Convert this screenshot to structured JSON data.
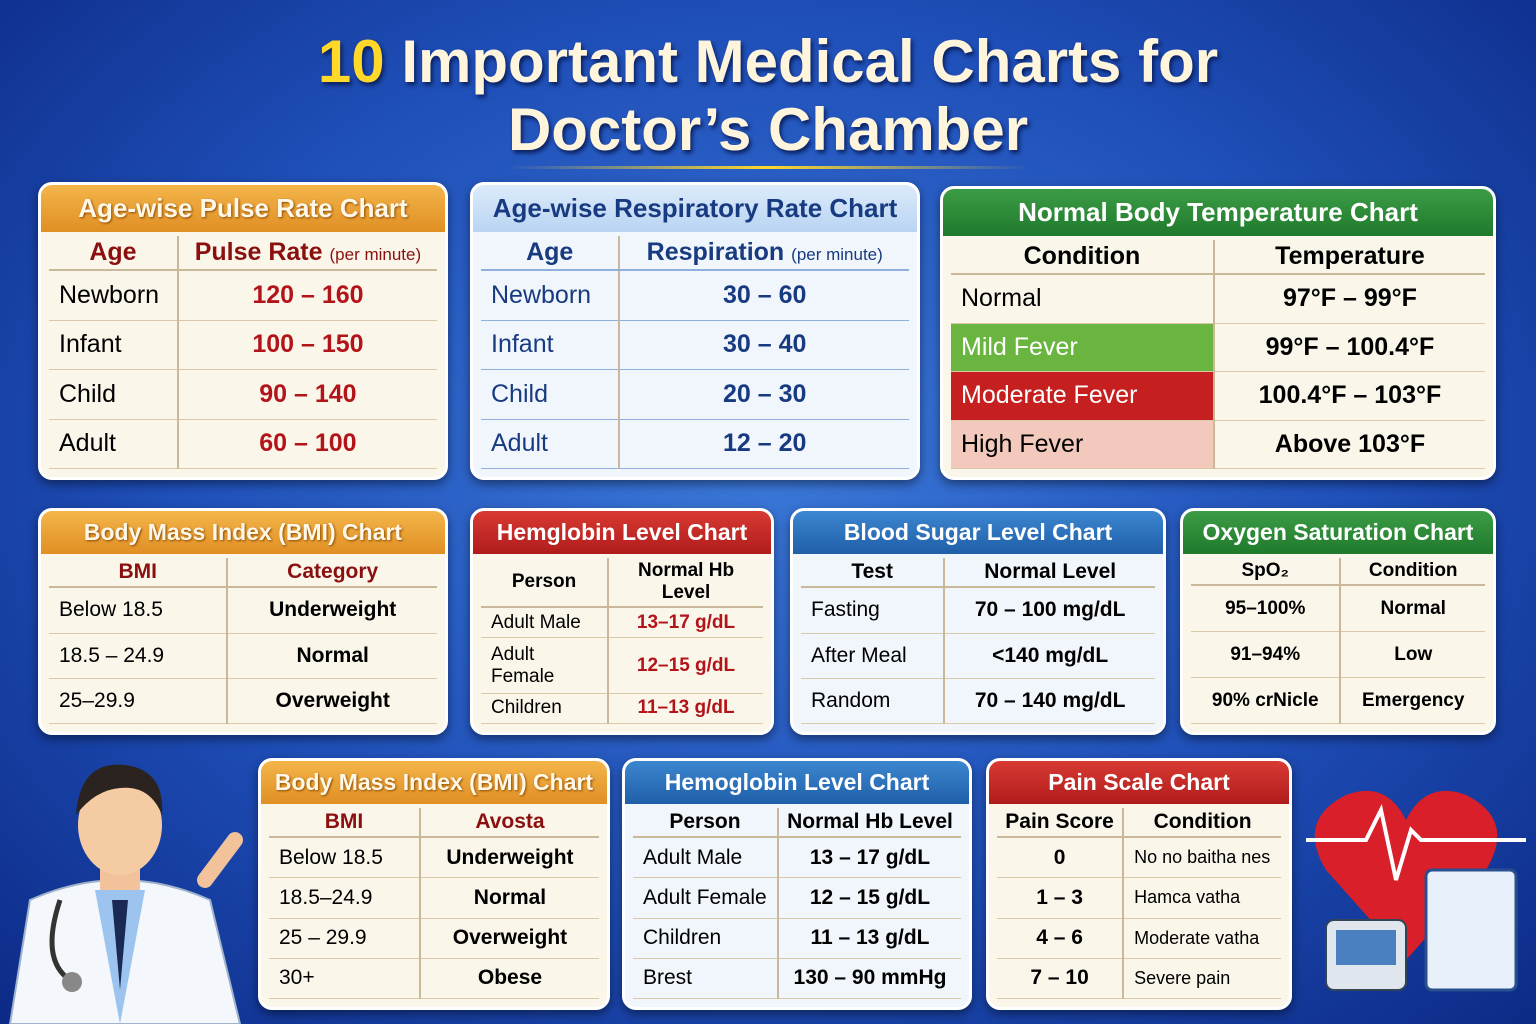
{
  "header": {
    "number": "10",
    "line1": "Important Medical Charts for",
    "line2": "Doctor’s Chamber"
  },
  "cards": [
    {
      "title": "Age-wise Pulse Rate Chart",
      "columns": [
        "Age",
        {
          "text": "Pulse Rate",
          "note": "(per minute)"
        }
      ],
      "rows": [
        [
          "Newborn",
          "120 – 160"
        ],
        [
          "Infant",
          "100 – 150"
        ],
        [
          "Child",
          "90 – 140"
        ],
        [
          "Adult",
          "60 – 100"
        ]
      ]
    },
    {
      "title": "Age-wise Respiratory Rate Chart",
      "columns": [
        "Age",
        {
          "text": "Respiration",
          "note": "(per minute)"
        }
      ],
      "rows": [
        [
          "Newborn",
          "30 – 60"
        ],
        [
          "Infant",
          "30 – 40"
        ],
        [
          "Child",
          "20 – 30"
        ],
        [
          "Adult",
          "12 – 20"
        ]
      ]
    },
    {
      "title": "Normal Body Temperature Chart",
      "columns": [
        "Condition",
        "Temperature"
      ],
      "rows": [
        [
          "Normal",
          "97°F – 99°F"
        ],
        [
          "Mild Fever",
          "99°F – 100.4°F"
        ],
        [
          "Moderate Fever",
          "100.4°F – 103°F"
        ],
        [
          "High Fever",
          "Above 103°F"
        ]
      ]
    },
    {
      "title": "Body Mass Index (BMI) Chart",
      "columns": [
        "BMI",
        "Category"
      ],
      "rows": [
        [
          "Below 18.5",
          "Underweight"
        ],
        [
          "18.5 – 24.9",
          "Normal"
        ],
        [
          "25–29.9",
          "Overweight"
        ]
      ]
    },
    {
      "title": "Hemglobin Level Chart",
      "columns": [
        "Person",
        "Normal Hb Level"
      ],
      "rows": [
        [
          "Adult Male",
          "13–17 g/dL"
        ],
        [
          "Adult Female",
          "12–15 g/dL"
        ],
        [
          "Children",
          "11–13 g/dL"
        ]
      ]
    },
    {
      "title": "Blood Sugar Level Chart",
      "columns": [
        "Test",
        "Normal Level"
      ],
      "rows": [
        [
          "Fasting",
          "70 – 100 mg/dL"
        ],
        [
          "After Meal",
          "<140 mg/dL"
        ],
        [
          "Random",
          "70 – 140 mg/dL"
        ]
      ]
    },
    {
      "title": "Oxygen Saturation Chart",
      "columns": [
        "SpO₂",
        "Condition"
      ],
      "rows": [
        [
          "95–100%",
          "Normal"
        ],
        [
          "91–94%",
          "Low"
        ],
        [
          "90% crNicle",
          "Emergency"
        ]
      ]
    },
    {
      "title": "Body Mass Index (BMI) Chart",
      "columns": [
        "BMI",
        "Avosta"
      ],
      "rows": [
        [
          "Below 18.5",
          "Underweight"
        ],
        [
          "18.5–24.9",
          "Normal"
        ],
        [
          "25 – 29.9",
          "Overweight"
        ],
        [
          "30+",
          "Obese"
        ]
      ]
    },
    {
      "title": "Hemoglobin Level Chart",
      "columns": [
        "Person",
        "Normal Hb Level"
      ],
      "rows": [
        [
          "Adult Male",
          "13 – 17 g/dL"
        ],
        [
          "Adult Female",
          "12 – 15 g/dL"
        ],
        [
          "Children",
          "11 – 13 g/dL"
        ],
        [
          "Brest",
          "130 – 90 mmHg"
        ]
      ]
    },
    {
      "title": "Pain Scale Chart",
      "columns": [
        "Pain Score",
        "Condition"
      ],
      "rows": [
        [
          "0",
          "No no baitha nes"
        ],
        [
          "1 – 3",
          "Hamca vatha"
        ],
        [
          "4 – 6",
          "Moderate vatha"
        ],
        [
          "7 – 10",
          "Severe pain"
        ]
      ]
    }
  ]
}
